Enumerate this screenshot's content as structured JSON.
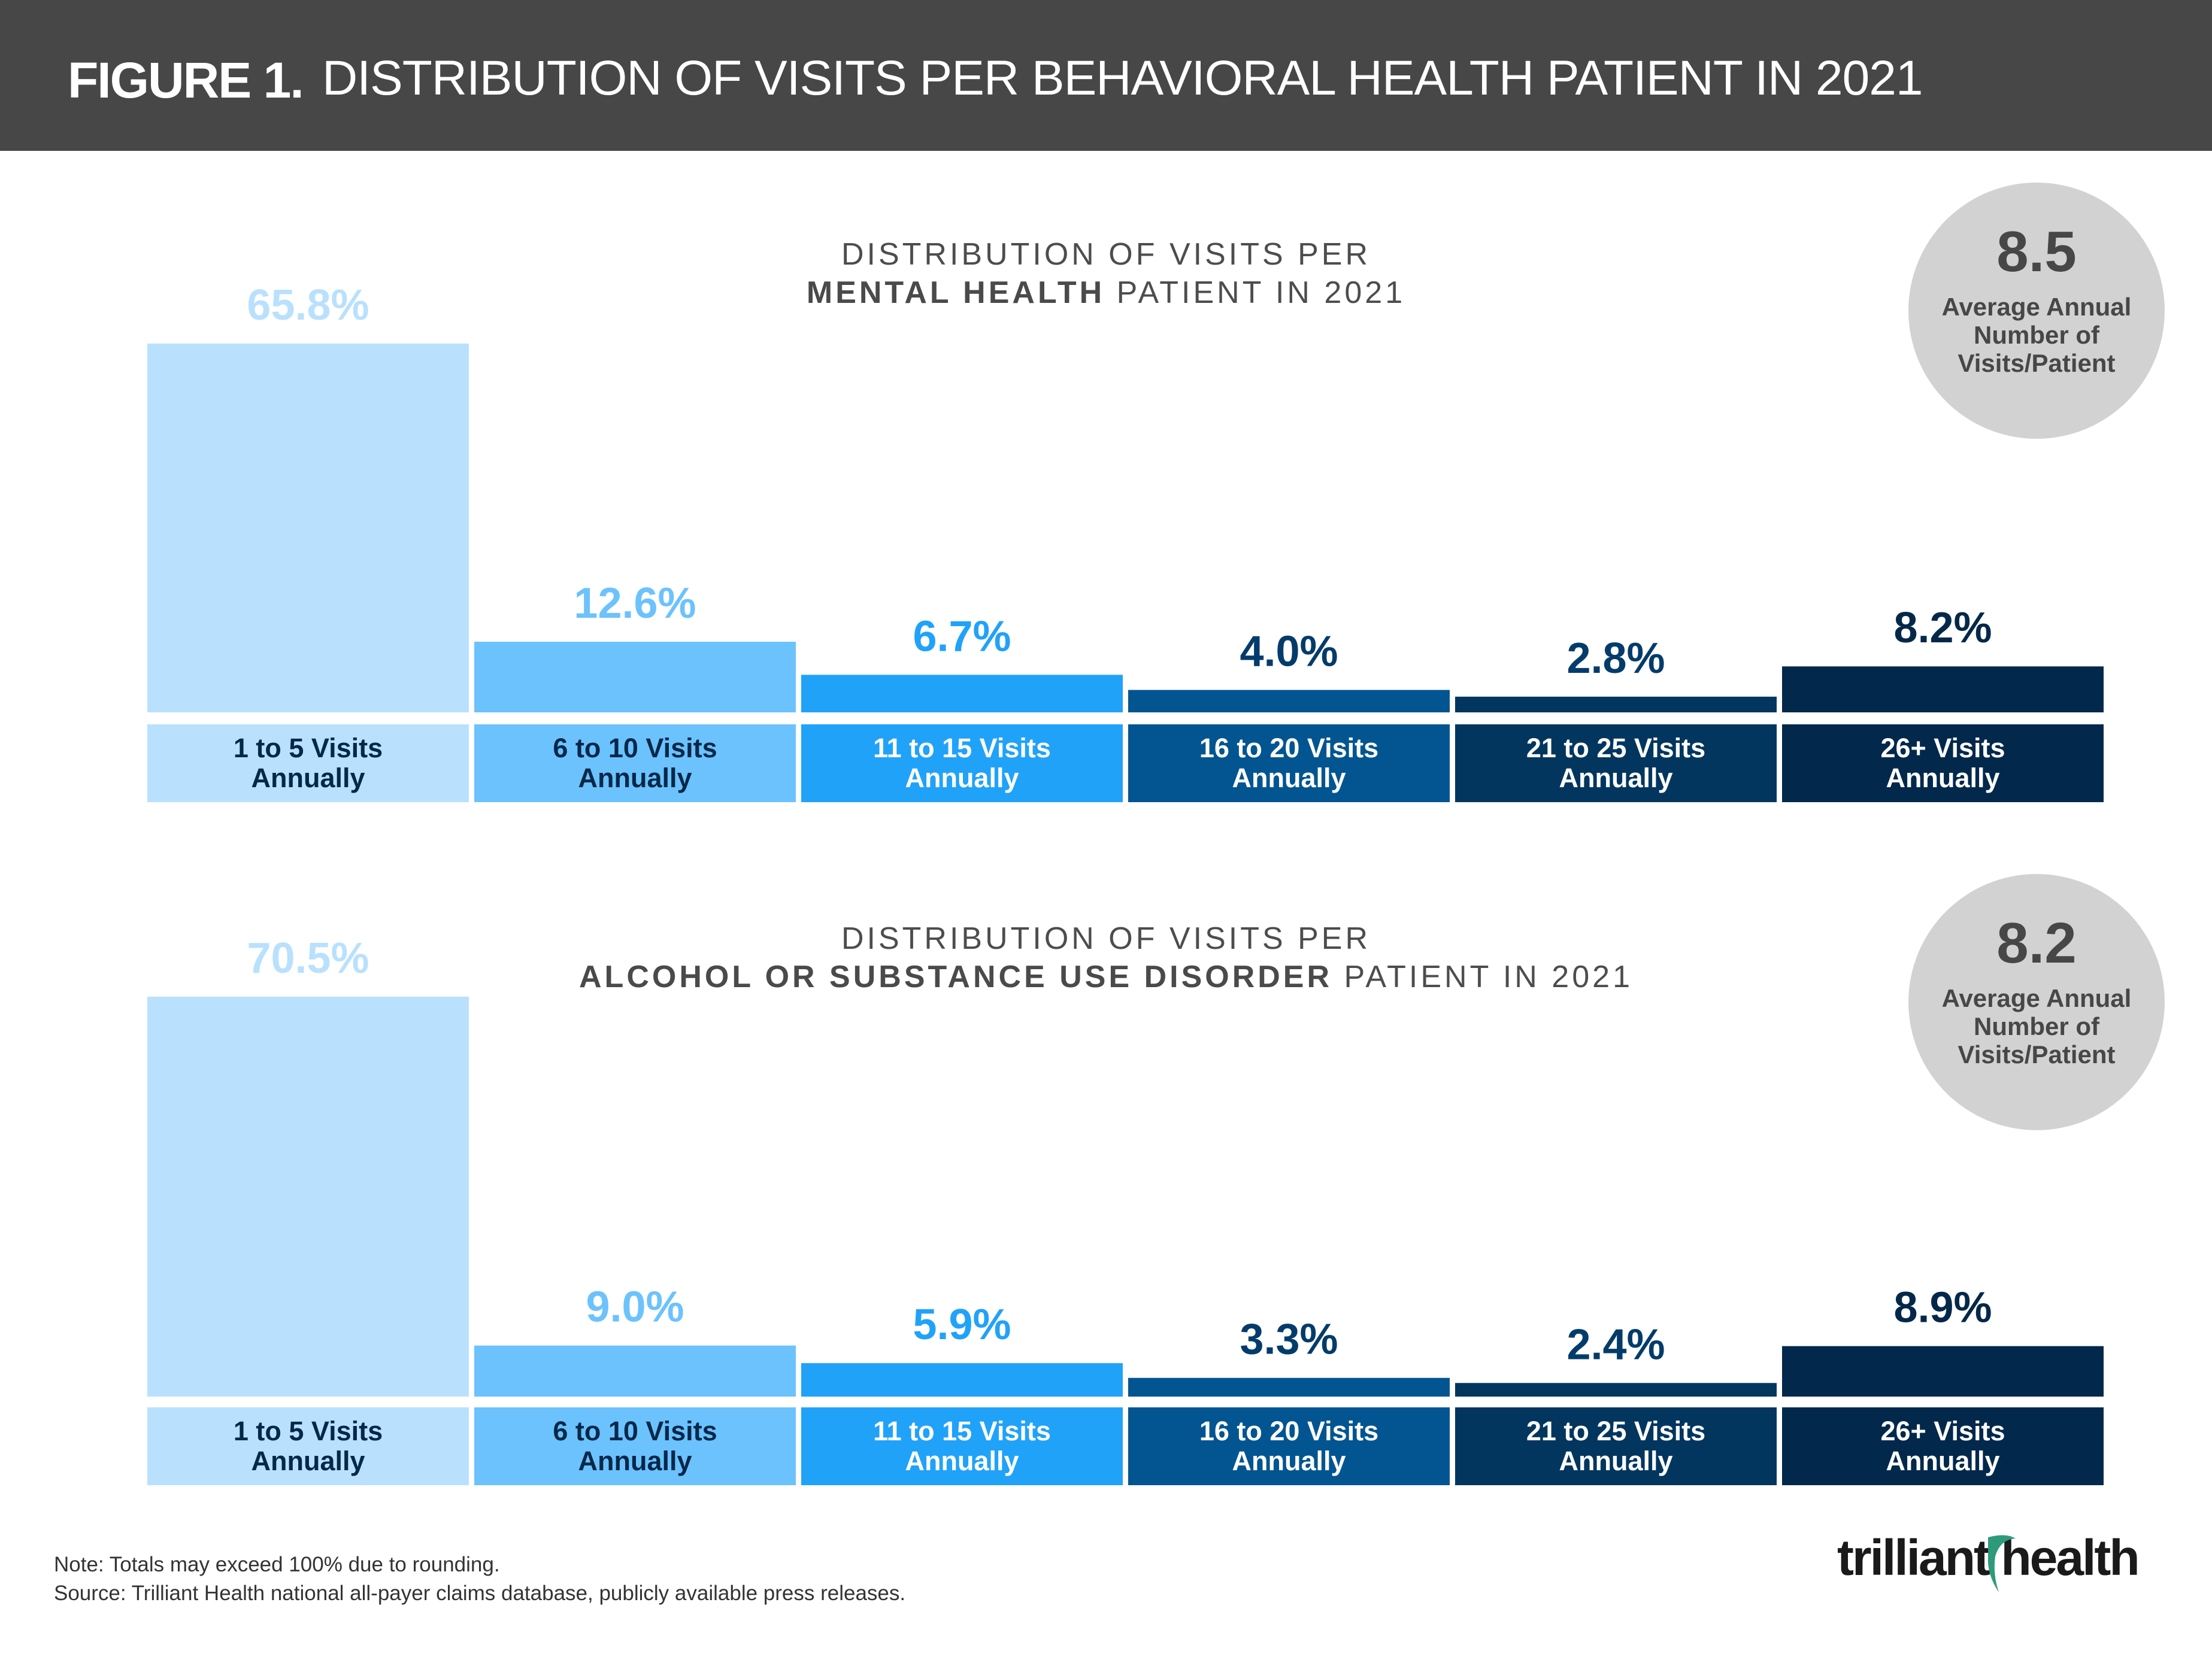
{
  "header": {
    "figure_label": "FIGURE 1.",
    "title": "DISTRIBUTION OF VISITS PER BEHAVIORAL HEALTH PATIENT IN 2021"
  },
  "chart_data": [
    {
      "type": "bar",
      "title_line1": "DISTRIBUTION OF VISITS PER",
      "title_bold": "MENTAL HEALTH",
      "title_rest": " PATIENT IN 2021",
      "categories": [
        [
          "1 to 5 Visits",
          "Annually"
        ],
        [
          "6 to 10 Visits",
          "Annually"
        ],
        [
          "11 to 15 Visits",
          "Annually"
        ],
        [
          "16 to 20 Visits",
          "Annually"
        ],
        [
          "21 to 25 Visits",
          "Annually"
        ],
        [
          "26+ Visits",
          "Annually"
        ]
      ],
      "values": [
        65.8,
        12.6,
        6.7,
        4.0,
        2.8,
        8.2
      ],
      "value_labels": [
        "65.8%",
        "12.6%",
        "6.7%",
        "4.0%",
        "2.8%",
        "8.2%"
      ],
      "ylim": [
        0,
        66
      ],
      "average": {
        "value": "8.5",
        "label": "Average Annual Number of Visits/Patient"
      }
    },
    {
      "type": "bar",
      "title_line1": "DISTRIBUTION OF VISITS PER",
      "title_bold": "ALCOHOL OR SUBSTANCE USE DISORDER",
      "title_rest": " PATIENT IN 2021",
      "categories": [
        [
          "1 to 5 Visits",
          "Annually"
        ],
        [
          "6 to 10 Visits",
          "Annually"
        ],
        [
          "11 to 15 Visits",
          "Annually"
        ],
        [
          "16 to 20 Visits",
          "Annually"
        ],
        [
          "21 to 25 Visits",
          "Annually"
        ],
        [
          "26+ Visits",
          "Annually"
        ]
      ],
      "values": [
        70.5,
        9.0,
        5.9,
        3.3,
        2.4,
        8.9
      ],
      "value_labels": [
        "70.5%",
        "9.0%",
        "5.9%",
        "3.3%",
        "2.4%",
        "8.9%"
      ],
      "ylim": [
        0,
        70.5
      ],
      "average": {
        "value": "8.2",
        "label": "Average Annual Number of Visits/Patient"
      }
    }
  ],
  "colors": {
    "bars": [
      "#b9e1fe",
      "#6cc2fd",
      "#21a2f9",
      "#025591",
      "#02365f",
      "#02284c"
    ],
    "value_labels": [
      "#b9e1fe",
      "#6cc2fd",
      "#21a2f9",
      "#033c6b",
      "#033c6b",
      "#03284a"
    ],
    "box_text": [
      "#03284a",
      "#03284a",
      "#ffffff",
      "#ffffff",
      "#ffffff",
      "#ffffff"
    ],
    "header_bg": "#474747",
    "circle_bg": "#d2d2d2"
  },
  "footer": {
    "note": "Note: Totals may exceed 100% due to rounding.",
    "source": "Source: Trilliant Health national all-payer claims database, publicly available press releases.",
    "logo_text": "trilliant health"
  }
}
